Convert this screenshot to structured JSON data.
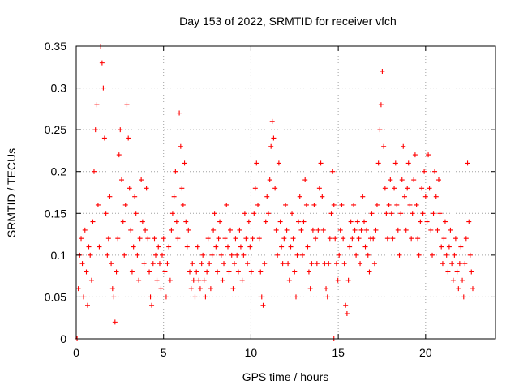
{
  "chart_data": {
    "type": "scatter",
    "title": "Day 153 of 2022, SRMTID for receiver vfch",
    "xlabel": "GPS time / hours",
    "ylabel": "SRMTID / TECUs",
    "xlim": [
      0,
      24
    ],
    "ylim": [
      0,
      0.35
    ],
    "xticks": [
      0,
      5,
      10,
      15,
      20
    ],
    "xtick_labels": [
      "0",
      "5",
      "10",
      "15",
      "20"
    ],
    "yticks": [
      0,
      0.05,
      0.1,
      0.15,
      0.2,
      0.25,
      0.3,
      0.35
    ],
    "ytick_labels": [
      "0",
      "0.05",
      "0.1",
      "0.15",
      "0.2",
      "0.25",
      "0.3",
      "0.35"
    ],
    "grid": true,
    "marker": "plus",
    "color": "#ff0000",
    "series": [
      {
        "points": [
          [
            0.05,
            0.0
          ],
          [
            0.12,
            0.06
          ],
          [
            0.2,
            0.1
          ],
          [
            0.28,
            0.12
          ],
          [
            0.35,
            0.09
          ],
          [
            0.42,
            0.05
          ],
          [
            0.5,
            0.13
          ],
          [
            0.58,
            0.08
          ],
          [
            0.65,
            0.04
          ],
          [
            0.72,
            0.11
          ],
          [
            0.8,
            0.1
          ],
          [
            0.88,
            0.07
          ],
          [
            0.95,
            0.14
          ],
          [
            1.02,
            0.2
          ],
          [
            1.1,
            0.25
          ],
          [
            1.18,
            0.28
          ],
          [
            1.25,
            0.16
          ],
          [
            1.32,
            0.11
          ],
          [
            1.4,
            0.35
          ],
          [
            1.48,
            0.33
          ],
          [
            1.55,
            0.3
          ],
          [
            1.62,
            0.24
          ],
          [
            1.7,
            0.15
          ],
          [
            1.78,
            0.1
          ],
          [
            1.85,
            0.12
          ],
          [
            1.92,
            0.17
          ],
          [
            2.0,
            0.09
          ],
          [
            2.08,
            0.06
          ],
          [
            2.15,
            0.05
          ],
          [
            2.22,
            0.02
          ],
          [
            2.3,
            0.08
          ],
          [
            2.38,
            0.12
          ],
          [
            2.45,
            0.22
          ],
          [
            2.52,
            0.25
          ],
          [
            2.6,
            0.19
          ],
          [
            2.68,
            0.14
          ],
          [
            2.75,
            0.1
          ],
          [
            2.82,
            0.16
          ],
          [
            2.9,
            0.28
          ],
          [
            2.98,
            0.24
          ],
          [
            3.05,
            0.18
          ],
          [
            3.12,
            0.13
          ],
          [
            3.2,
            0.08
          ],
          [
            3.28,
            0.11
          ],
          [
            3.35,
            0.17
          ],
          [
            3.42,
            0.15
          ],
          [
            3.5,
            0.1
          ],
          [
            3.58,
            0.07
          ],
          [
            3.65,
            0.12
          ],
          [
            3.72,
            0.19
          ],
          [
            3.8,
            0.14
          ],
          [
            3.88,
            0.09
          ],
          [
            3.95,
            0.13
          ],
          [
            4.02,
            0.18
          ],
          [
            4.1,
            0.12
          ],
          [
            4.18,
            0.08
          ],
          [
            4.25,
            0.05
          ],
          [
            4.32,
            0.04
          ],
          [
            4.4,
            0.09
          ],
          [
            4.48,
            0.12
          ],
          [
            4.55,
            0.1
          ],
          [
            4.62,
            0.07
          ],
          [
            4.7,
            0.11
          ],
          [
            4.78,
            0.09
          ],
          [
            4.85,
            0.06
          ],
          [
            4.92,
            0.1
          ],
          [
            5.0,
            0.12
          ],
          [
            5.08,
            0.08
          ],
          [
            5.15,
            0.05
          ],
          [
            5.22,
            0.09
          ],
          [
            5.3,
            0.11
          ],
          [
            5.38,
            0.07
          ],
          [
            5.45,
            0.13
          ],
          [
            5.52,
            0.15
          ],
          [
            5.6,
            0.17
          ],
          [
            5.68,
            0.2
          ],
          [
            5.75,
            0.14
          ],
          [
            5.82,
            0.12
          ],
          [
            5.9,
            0.27
          ],
          [
            5.98,
            0.23
          ],
          [
            6.05,
            0.18
          ],
          [
            6.12,
            0.16
          ],
          [
            6.2,
            0.21
          ],
          [
            6.28,
            0.14
          ],
          [
            6.35,
            0.11
          ],
          [
            6.42,
            0.13
          ],
          [
            6.5,
            0.08
          ],
          [
            6.58,
            0.06
          ],
          [
            6.65,
            0.09
          ],
          [
            6.72,
            0.07
          ],
          [
            6.8,
            0.05
          ],
          [
            6.88,
            0.08
          ],
          [
            6.95,
            0.11
          ],
          [
            7.02,
            0.07
          ],
          [
            7.1,
            0.06
          ],
          [
            7.18,
            0.09
          ],
          [
            7.25,
            0.1
          ],
          [
            7.32,
            0.07
          ],
          [
            7.4,
            0.05
          ],
          [
            7.48,
            0.08
          ],
          [
            7.55,
            0.12
          ],
          [
            7.62,
            0.09
          ],
          [
            7.7,
            0.06
          ],
          [
            7.78,
            0.1
          ],
          [
            7.85,
            0.13
          ],
          [
            7.92,
            0.15
          ],
          [
            8.0,
            0.11
          ],
          [
            8.08,
            0.08
          ],
          [
            8.15,
            0.12
          ],
          [
            8.22,
            0.14
          ],
          [
            8.3,
            0.1
          ],
          [
            8.38,
            0.07
          ],
          [
            8.45,
            0.09
          ],
          [
            8.52,
            0.12
          ],
          [
            8.6,
            0.16
          ],
          [
            8.68,
            0.11
          ],
          [
            8.75,
            0.08
          ],
          [
            8.82,
            0.13
          ],
          [
            8.9,
            0.1
          ],
          [
            8.98,
            0.06
          ],
          [
            9.05,
            0.09
          ],
          [
            9.12,
            0.12
          ],
          [
            9.2,
            0.1
          ],
          [
            9.28,
            0.08
          ],
          [
            9.35,
            0.13
          ],
          [
            9.42,
            0.11
          ],
          [
            9.5,
            0.07
          ],
          [
            9.58,
            0.1
          ],
          [
            9.65,
            0.15
          ],
          [
            9.72,
            0.12
          ],
          [
            9.8,
            0.09
          ],
          [
            9.88,
            0.14
          ],
          [
            9.95,
            0.11
          ],
          [
            10.02,
            0.08
          ],
          [
            10.1,
            0.12
          ],
          [
            10.18,
            0.15
          ],
          [
            10.25,
            0.18
          ],
          [
            10.32,
            0.21
          ],
          [
            10.4,
            0.16
          ],
          [
            10.48,
            0.12
          ],
          [
            10.55,
            0.08
          ],
          [
            10.62,
            0.05
          ],
          [
            10.7,
            0.04
          ],
          [
            10.78,
            0.09
          ],
          [
            10.85,
            0.14
          ],
          [
            10.92,
            0.17
          ],
          [
            11.0,
            0.15
          ],
          [
            11.08,
            0.19
          ],
          [
            11.15,
            0.23
          ],
          [
            11.22,
            0.26
          ],
          [
            11.3,
            0.24
          ],
          [
            11.38,
            0.18
          ],
          [
            11.45,
            0.13
          ],
          [
            11.52,
            0.1
          ],
          [
            11.6,
            0.21
          ],
          [
            11.68,
            0.14
          ],
          [
            11.75,
            0.11
          ],
          [
            11.82,
            0.09
          ],
          [
            11.9,
            0.12
          ],
          [
            11.98,
            0.16
          ],
          [
            12.05,
            0.13
          ],
          [
            12.12,
            0.09
          ],
          [
            12.2,
            0.07
          ],
          [
            12.28,
            0.11
          ],
          [
            12.35,
            0.15
          ],
          [
            12.42,
            0.12
          ],
          [
            12.5,
            0.08
          ],
          [
            12.58,
            0.05
          ],
          [
            12.65,
            0.1
          ],
          [
            12.72,
            0.14
          ],
          [
            12.8,
            0.17
          ],
          [
            12.88,
            0.13
          ],
          [
            12.95,
            0.1
          ],
          [
            13.02,
            0.14
          ],
          [
            13.1,
            0.19
          ],
          [
            13.18,
            0.16
          ],
          [
            13.25,
            0.11
          ],
          [
            13.32,
            0.08
          ],
          [
            13.4,
            0.06
          ],
          [
            13.48,
            0.09
          ],
          [
            13.55,
            0.13
          ],
          [
            13.62,
            0.16
          ],
          [
            13.7,
            0.12
          ],
          [
            13.78,
            0.09
          ],
          [
            13.85,
            0.13
          ],
          [
            13.92,
            0.18
          ],
          [
            14.0,
            0.21
          ],
          [
            14.08,
            0.17
          ],
          [
            14.15,
            0.13
          ],
          [
            14.22,
            0.09
          ],
          [
            14.3,
            0.06
          ],
          [
            14.38,
            0.05
          ],
          [
            14.45,
            0.09
          ],
          [
            14.52,
            0.12
          ],
          [
            14.6,
            0.15
          ],
          [
            14.68,
            0.2
          ],
          [
            14.75,
            0.16
          ],
          [
            14.82,
            0.12
          ],
          [
            14.9,
            0.09
          ],
          [
            14.98,
            0.07
          ],
          [
            15.05,
            0.1
          ],
          [
            15.12,
            0.13
          ],
          [
            15.2,
            0.16
          ],
          [
            15.28,
            0.12
          ],
          [
            15.35,
            0.09
          ],
          [
            15.42,
            0.04
          ],
          [
            15.5,
            0.03
          ],
          [
            15.58,
            0.07
          ],
          [
            15.65,
            0.11
          ],
          [
            15.72,
            0.14
          ],
          [
            15.8,
            0.12
          ],
          [
            15.88,
            0.16
          ],
          [
            15.95,
            0.13
          ],
          [
            16.02,
            0.1
          ],
          [
            16.1,
            0.14
          ],
          [
            16.18,
            0.12
          ],
          [
            16.25,
            0.09
          ],
          [
            16.32,
            0.13
          ],
          [
            16.4,
            0.17
          ],
          [
            16.48,
            0.14
          ],
          [
            16.55,
            0.11
          ],
          [
            16.62,
            0.13
          ],
          [
            16.7,
            0.1
          ],
          [
            16.78,
            0.08
          ],
          [
            16.85,
            0.12
          ],
          [
            16.92,
            0.15
          ],
          [
            17.0,
            0.12
          ],
          [
            17.08,
            0.09
          ],
          [
            17.15,
            0.13
          ],
          [
            17.22,
            0.16
          ],
          [
            17.3,
            0.21
          ],
          [
            17.38,
            0.25
          ],
          [
            17.45,
            0.28
          ],
          [
            17.52,
            0.32
          ],
          [
            17.6,
            0.23
          ],
          [
            17.68,
            0.18
          ],
          [
            17.75,
            0.15
          ],
          [
            17.82,
            0.12
          ],
          [
            17.9,
            0.16
          ],
          [
            17.98,
            0.19
          ],
          [
            18.05,
            0.15
          ],
          [
            18.12,
            0.12
          ],
          [
            18.2,
            0.18
          ],
          [
            18.28,
            0.21
          ],
          [
            18.35,
            0.16
          ],
          [
            18.42,
            0.13
          ],
          [
            18.5,
            0.1
          ],
          [
            18.58,
            0.15
          ],
          [
            18.65,
            0.19
          ],
          [
            18.72,
            0.23
          ],
          [
            18.8,
            0.17
          ],
          [
            18.88,
            0.13
          ],
          [
            18.95,
            0.18
          ],
          [
            19.02,
            0.21
          ],
          [
            19.1,
            0.16
          ],
          [
            19.18,
            0.12
          ],
          [
            19.25,
            0.15
          ],
          [
            19.32,
            0.19
          ],
          [
            19.4,
            0.22
          ],
          [
            19.48,
            0.16
          ],
          [
            19.55,
            0.12
          ],
          [
            19.62,
            0.1
          ],
          [
            19.7,
            0.14
          ],
          [
            19.78,
            0.18
          ],
          [
            19.85,
            0.15
          ],
          [
            19.92,
            0.2
          ],
          [
            20.0,
            0.17
          ],
          [
            20.08,
            0.14
          ],
          [
            20.15,
            0.22
          ],
          [
            20.22,
            0.18
          ],
          [
            20.3,
            0.13
          ],
          [
            20.38,
            0.1
          ],
          [
            20.45,
            0.15
          ],
          [
            20.52,
            0.2
          ],
          [
            20.6,
            0.17
          ],
          [
            20.68,
            0.13
          ],
          [
            20.75,
            0.19
          ],
          [
            20.82,
            0.15
          ],
          [
            20.9,
            0.11
          ],
          [
            20.98,
            0.09
          ],
          [
            21.05,
            0.12
          ],
          [
            21.12,
            0.14
          ],
          [
            21.2,
            0.1
          ],
          [
            21.28,
            0.08
          ],
          [
            21.35,
            0.11
          ],
          [
            21.42,
            0.13
          ],
          [
            21.5,
            0.09
          ],
          [
            21.58,
            0.07
          ],
          [
            21.65,
            0.1
          ],
          [
            21.72,
            0.12
          ],
          [
            21.8,
            0.08
          ],
          [
            21.88,
            0.06
          ],
          [
            21.95,
            0.09
          ],
          [
            22.02,
            0.11
          ],
          [
            22.1,
            0.07
          ],
          [
            22.18,
            0.05
          ],
          [
            22.25,
            0.09
          ],
          [
            22.32,
            0.12
          ],
          [
            22.4,
            0.21
          ],
          [
            22.48,
            0.14
          ],
          [
            22.55,
            0.1
          ],
          [
            22.62,
            0.08
          ],
          [
            22.7,
            0.06
          ],
          [
            14.75,
            0.0
          ]
        ]
      }
    ]
  }
}
